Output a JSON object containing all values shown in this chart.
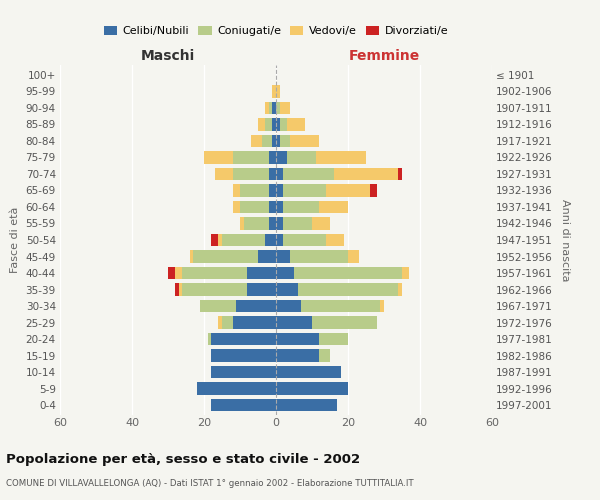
{
  "age_groups": [
    "0-4",
    "5-9",
    "10-14",
    "15-19",
    "20-24",
    "25-29",
    "30-34",
    "35-39",
    "40-44",
    "45-49",
    "50-54",
    "55-59",
    "60-64",
    "65-69",
    "70-74",
    "75-79",
    "80-84",
    "85-89",
    "90-94",
    "95-99",
    "100+"
  ],
  "birth_years": [
    "1997-2001",
    "1992-1996",
    "1987-1991",
    "1982-1986",
    "1977-1981",
    "1972-1976",
    "1967-1971",
    "1962-1966",
    "1957-1961",
    "1952-1956",
    "1947-1951",
    "1942-1946",
    "1937-1941",
    "1932-1936",
    "1927-1931",
    "1922-1926",
    "1917-1921",
    "1912-1916",
    "1907-1911",
    "1902-1906",
    "≤ 1901"
  ],
  "male": {
    "celibi": [
      18,
      22,
      18,
      18,
      18,
      12,
      11,
      8,
      8,
      5,
      3,
      2,
      2,
      2,
      2,
      2,
      1,
      1,
      1,
      0,
      0
    ],
    "coniugati": [
      0,
      0,
      0,
      0,
      1,
      3,
      10,
      18,
      18,
      18,
      12,
      7,
      8,
      8,
      10,
      10,
      3,
      2,
      1,
      0,
      0
    ],
    "vedovi": [
      0,
      0,
      0,
      0,
      0,
      1,
      0,
      1,
      2,
      1,
      1,
      1,
      2,
      2,
      5,
      8,
      3,
      2,
      1,
      1,
      0
    ],
    "divorziati": [
      0,
      0,
      0,
      0,
      0,
      0,
      0,
      1,
      2,
      0,
      2,
      0,
      0,
      0,
      0,
      0,
      0,
      0,
      0,
      0,
      0
    ]
  },
  "female": {
    "nubili": [
      17,
      20,
      18,
      12,
      12,
      10,
      7,
      6,
      5,
      4,
      2,
      2,
      2,
      2,
      2,
      3,
      1,
      1,
      0,
      0,
      0
    ],
    "coniugate": [
      0,
      0,
      0,
      3,
      8,
      18,
      22,
      28,
      30,
      16,
      12,
      8,
      10,
      12,
      14,
      8,
      3,
      2,
      1,
      0,
      0
    ],
    "vedove": [
      0,
      0,
      0,
      0,
      0,
      0,
      1,
      1,
      2,
      3,
      5,
      5,
      8,
      12,
      18,
      14,
      8,
      5,
      3,
      1,
      0
    ],
    "divorziate": [
      0,
      0,
      0,
      0,
      0,
      0,
      0,
      0,
      0,
      0,
      0,
      0,
      0,
      2,
      1,
      0,
      0,
      0,
      0,
      0,
      0
    ]
  },
  "colors": {
    "celibi": "#3a6ea5",
    "coniugati": "#b8cc8a",
    "vedovi": "#f5c96a",
    "divorziati": "#cc2222"
  },
  "xlim": 60,
  "title": "Popolazione per età, sesso e stato civile - 2002",
  "subtitle": "COMUNE DI VILLAVALLELONGA (AQ) - Dati ISTAT 1° gennaio 2002 - Elaborazione TUTTITALIA.IT",
  "ylabel_left": "Fasce di età",
  "ylabel_right": "Anni di nascita",
  "xlabel_left": "Maschi",
  "xlabel_right": "Femmine",
  "legend_labels": [
    "Celibi/Nubili",
    "Coniugati/e",
    "Vedovi/e",
    "Divorziati/e"
  ],
  "bg_color": "#f5f5f0",
  "grid_color": "#ffffff",
  "center_line_color": "#aaaaaa"
}
